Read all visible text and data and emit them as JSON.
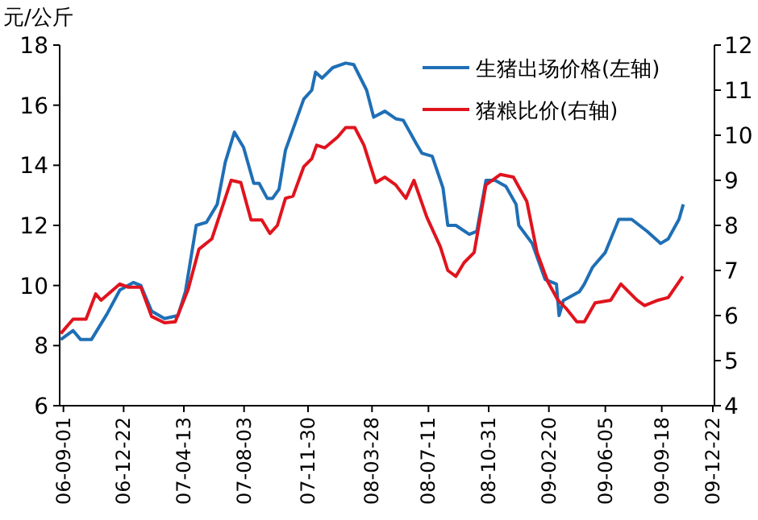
{
  "chart_data": {
    "type": "line",
    "ylabel": "元/公斤",
    "legend": "top right",
    "grid": false,
    "marker": "none",
    "line_style": "solid",
    "xlim": [
      "2006-08-25",
      "2009-12-25"
    ],
    "xticks": [
      {
        "value": "2006-09-01",
        "label": "06-09-01"
      },
      {
        "value": "2006-12-22",
        "label": "06-12-22"
      },
      {
        "value": "2007-04-13",
        "label": "07-04-13"
      },
      {
        "value": "2007-08-03",
        "label": "07-08-03"
      },
      {
        "value": "2007-11-30",
        "label": "07-11-30"
      },
      {
        "value": "2008-03-28",
        "label": "08-03-28"
      },
      {
        "value": "2008-07-11",
        "label": "08-07-11"
      },
      {
        "value": "2008-10-31",
        "label": "08-10-31"
      },
      {
        "value": "2009-02-20",
        "label": "09-02-20"
      },
      {
        "value": "2009-06-05",
        "label": "09-06-05"
      },
      {
        "value": "2009-09-18",
        "label": "09-09-18"
      },
      {
        "value": "2009-12-22",
        "label": "09-12-22"
      }
    ],
    "ylim": [
      6,
      18
    ],
    "yticks": [
      6,
      8,
      10,
      12,
      14,
      16,
      18
    ],
    "y2lim": [
      4,
      12
    ],
    "y2ticks": [
      4,
      5,
      6,
      7,
      8,
      9,
      10,
      11,
      12
    ],
    "series": [
      {
        "name": "生猪出场价格(左轴)",
        "color": "#1f6fb5",
        "x": [
          "2006-08-27",
          "2006-09-19",
          "2006-10-03",
          "2006-10-23",
          "2006-11-21",
          "2006-12-15",
          "2007-01-09",
          "2007-01-23",
          "2007-02-12",
          "2007-03-08",
          "2007-04-02",
          "2007-04-16",
          "2007-05-06",
          "2007-05-25",
          "2007-06-14",
          "2007-06-29",
          "2007-07-16",
          "2007-08-02",
          "2007-08-21",
          "2007-08-31",
          "2007-09-15",
          "2007-09-25",
          "2007-10-07",
          "2007-10-19",
          "2007-11-22",
          "2007-12-07",
          "2007-12-14",
          "2007-12-26",
          "2008-01-15",
          "2008-02-08",
          "2008-02-23",
          "2008-03-18",
          "2008-03-31",
          "2008-04-21",
          "2008-05-11",
          "2008-05-25",
          "2008-06-19",
          "2008-06-29",
          "2008-07-18",
          "2008-08-07",
          "2008-08-16",
          "2008-08-31",
          "2008-09-25",
          "2008-10-09",
          "2008-10-26",
          "2008-11-12",
          "2008-12-02",
          "2008-12-21",
          "2008-12-26",
          "2009-01-20",
          "2009-02-13",
          "2009-03-06",
          "2009-03-11",
          "2009-03-19",
          "2009-04-18",
          "2009-04-27",
          "2009-05-12",
          "2009-06-05",
          "2009-06-30",
          "2009-07-24",
          "2009-08-22",
          "2009-09-16",
          "2009-09-30",
          "2009-10-20",
          "2009-10-28"
        ],
        "values": [
          8.2,
          8.5,
          8.2,
          8.2,
          9.05,
          9.85,
          10.1,
          10.0,
          9.15,
          8.9,
          9.0,
          9.8,
          12.0,
          12.1,
          12.7,
          14.1,
          15.1,
          14.6,
          13.4,
          13.4,
          12.9,
          12.9,
          13.2,
          14.5,
          16.2,
          16.5,
          17.1,
          16.9,
          17.25,
          17.4,
          17.35,
          16.5,
          15.6,
          15.8,
          15.55,
          15.5,
          14.7,
          14.4,
          14.3,
          13.25,
          12.0,
          12.0,
          11.7,
          11.8,
          13.5,
          13.5,
          13.3,
          12.7,
          12.0,
          11.4,
          10.2,
          10.05,
          9.0,
          9.5,
          9.8,
          10.05,
          10.6,
          11.1,
          12.2,
          12.2,
          11.8,
          11.4,
          11.55,
          12.2,
          12.7
        ]
      },
      {
        "name": "猪粮比价(右轴)",
        "color": "#e0141e",
        "axis": "y2",
        "x": [
          "2006-08-27",
          "2006-09-19",
          "2006-10-13",
          "2006-10-31",
          "2006-11-10",
          "2006-12-15",
          "2006-12-30",
          "2007-01-23",
          "2007-02-12",
          "2007-03-08",
          "2007-03-28",
          "2007-04-21",
          "2007-05-11",
          "2007-06-04",
          "2007-06-24",
          "2007-07-10",
          "2007-07-28",
          "2007-08-16",
          "2007-09-05",
          "2007-09-20",
          "2007-10-04",
          "2007-10-19",
          "2007-11-02",
          "2007-11-22",
          "2007-12-07",
          "2007-12-16",
          "2007-12-31",
          "2008-01-24",
          "2008-02-08",
          "2008-02-25",
          "2008-03-13",
          "2008-04-04",
          "2008-04-21",
          "2008-05-11",
          "2008-05-30",
          "2008-06-14",
          "2008-07-08",
          "2008-08-02",
          "2008-08-16",
          "2008-08-31",
          "2008-09-15",
          "2008-10-04",
          "2008-10-26",
          "2008-11-22",
          "2008-12-16",
          "2009-01-10",
          "2009-01-29",
          "2009-02-18",
          "2009-03-09",
          "2009-03-24",
          "2009-04-13",
          "2009-04-27",
          "2009-05-17",
          "2009-06-15",
          "2009-07-04",
          "2009-08-03",
          "2009-08-17",
          "2009-09-11",
          "2009-09-30",
          "2009-10-27"
        ],
        "values": [
          5.6,
          5.92,
          5.92,
          6.48,
          6.34,
          6.7,
          6.63,
          6.63,
          5.98,
          5.84,
          5.86,
          6.58,
          7.47,
          7.7,
          8.42,
          9.0,
          8.95,
          8.12,
          8.12,
          7.82,
          8.0,
          8.6,
          8.65,
          9.3,
          9.48,
          9.78,
          9.72,
          9.96,
          10.17,
          10.17,
          9.78,
          8.95,
          9.07,
          8.9,
          8.6,
          9.0,
          8.18,
          7.53,
          7.0,
          6.87,
          7.17,
          7.4,
          8.9,
          9.13,
          9.07,
          8.53,
          7.4,
          6.75,
          6.34,
          6.16,
          5.86,
          5.86,
          6.28,
          6.34,
          6.7,
          6.34,
          6.22,
          6.34,
          6.4,
          6.87
        ]
      }
    ]
  }
}
